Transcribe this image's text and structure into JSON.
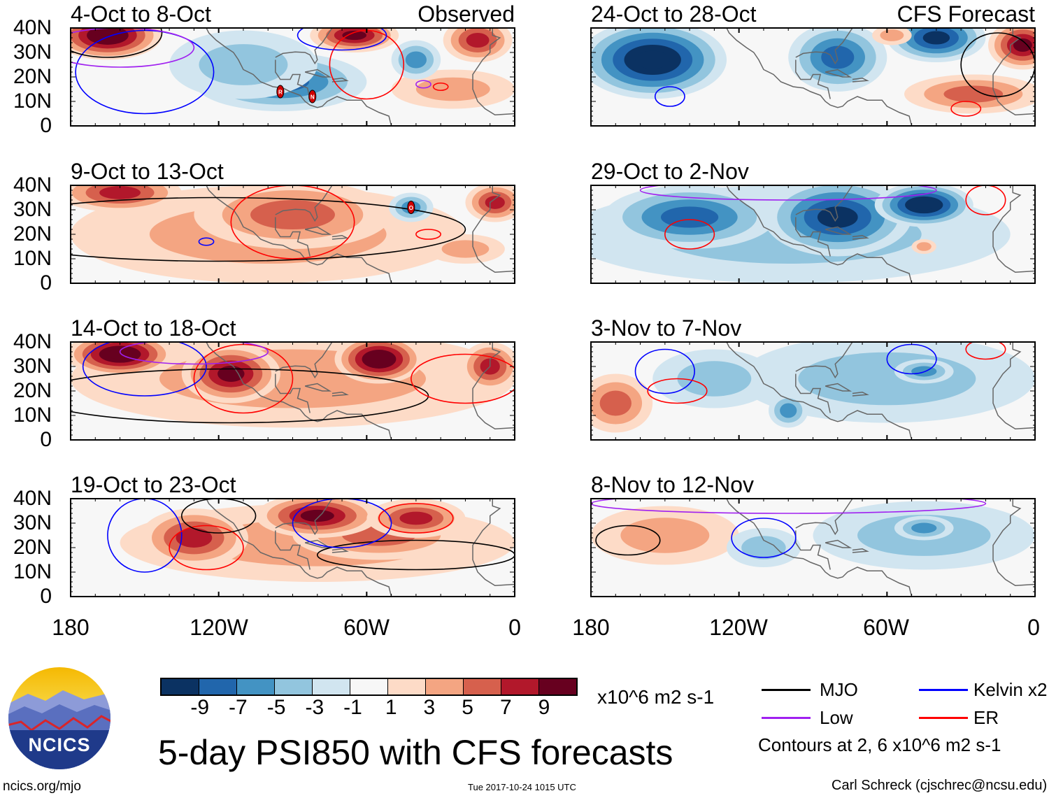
{
  "panels": [
    {
      "title": "4-Oct to 8-Oct",
      "tag": "Observed",
      "column": "left",
      "row": 0,
      "anomalies": [
        {
          "lon": 165,
          "lat": 37,
          "rx": 22,
          "ry": 10,
          "v": 10
        },
        {
          "lon": 65,
          "lat": 37,
          "rx": 18,
          "ry": 7,
          "v": 9
        },
        {
          "lon": 15,
          "lat": 35,
          "rx": 14,
          "ry": 9,
          "v": 6
        },
        {
          "lon": 25,
          "lat": 15,
          "rx": 25,
          "ry": 8,
          "v": 3
        },
        {
          "lon": 95,
          "lat": 18,
          "rx": 35,
          "ry": 12,
          "v": -6
        },
        {
          "lon": 40,
          "lat": 27,
          "rx": 10,
          "ry": 8,
          "v": -4
        },
        {
          "lon": 110,
          "lat": 25,
          "rx": 30,
          "ry": 14,
          "v": -2
        }
      ],
      "contours": [
        {
          "type": "Kelvin",
          "lon": 150,
          "lat": 22,
          "rx": 28,
          "ry": 17
        },
        {
          "type": "ER",
          "lon": 60,
          "lat": 25,
          "rx": 15,
          "ry": 14
        },
        {
          "type": "MJO",
          "lon": 165,
          "lat": 38,
          "rx": 22,
          "ry": 10
        },
        {
          "type": "Low",
          "lon": 160,
          "lat": 32,
          "rx": 30,
          "ry": 8
        },
        {
          "type": "Kelvin",
          "lon": 70,
          "lat": 37,
          "rx": 18,
          "ry": 6
        },
        {
          "type": "ER",
          "lon": 30,
          "lat": 16,
          "rx": 3,
          "ry": 1.5
        },
        {
          "type": "Low",
          "lon": 37,
          "lat": 17,
          "rx": 3,
          "ry": 1.5
        }
      ],
      "storms": [
        {
          "label": "R",
          "lon": 95,
          "lat": 14
        },
        {
          "label": "N",
          "lon": 82,
          "lat": 12
        }
      ]
    },
    {
      "title": "24-Oct to 28-Oct",
      "tag": "CFS Forecast",
      "column": "right",
      "row": 0,
      "anomalies": [
        {
          "lon": 155,
          "lat": 27,
          "rx": 30,
          "ry": 16,
          "v": -11
        },
        {
          "lon": 80,
          "lat": 28,
          "rx": 20,
          "ry": 14,
          "v": -6
        },
        {
          "lon": 40,
          "lat": 36,
          "rx": 20,
          "ry": 10,
          "v": -9
        },
        {
          "lon": 5,
          "lat": 33,
          "rx": 14,
          "ry": 10,
          "v": 8
        },
        {
          "lon": 25,
          "lat": 13,
          "rx": 28,
          "ry": 8,
          "v": 4
        },
        {
          "lon": 58,
          "lat": 37,
          "rx": 8,
          "ry": 4,
          "v": 3
        }
      ],
      "contours": [
        {
          "type": "Kelvin",
          "lon": 148,
          "lat": 12,
          "rx": 6,
          "ry": 4
        },
        {
          "type": "ER",
          "lon": 28,
          "lat": 7,
          "rx": 6,
          "ry": 3
        },
        {
          "type": "MJO",
          "lon": 15,
          "lat": 25,
          "rx": 15,
          "ry": 13
        }
      ],
      "storms": []
    },
    {
      "title": "9-Oct to 13-Oct",
      "tag": "",
      "column": "left",
      "row": 1,
      "anomalies": [
        {
          "lon": 160,
          "lat": 37,
          "rx": 25,
          "ry": 8,
          "v": 7
        },
        {
          "lon": 90,
          "lat": 28,
          "rx": 40,
          "ry": 14,
          "v": 4
        },
        {
          "lon": 100,
          "lat": 20,
          "rx": 80,
          "ry": 20,
          "v": 2
        },
        {
          "lon": 42,
          "lat": 31,
          "rx": 9,
          "ry": 6,
          "v": -5
        },
        {
          "lon": 8,
          "lat": 33,
          "rx": 12,
          "ry": 8,
          "v": 6
        },
        {
          "lon": 20,
          "lat": 14,
          "rx": 16,
          "ry": 6,
          "v": 2
        }
      ],
      "contours": [
        {
          "type": "MJO",
          "lon": 120,
          "lat": 22,
          "rx": 100,
          "ry": 13
        },
        {
          "type": "ER",
          "lon": 90,
          "lat": 25,
          "rx": 25,
          "ry": 15
        },
        {
          "type": "Kelvin",
          "lon": 125,
          "lat": 17,
          "rx": 3,
          "ry": 1.5
        },
        {
          "type": "ER",
          "lon": 35,
          "lat": 20,
          "rx": 5,
          "ry": 2
        }
      ],
      "storms": [
        {
          "label": "O",
          "lon": 42,
          "lat": 31
        }
      ]
    },
    {
      "title": "29-Oct to 2-Nov",
      "tag": "",
      "column": "right",
      "row": 1,
      "anomalies": [
        {
          "lon": 140,
          "lat": 27,
          "rx": 35,
          "ry": 13,
          "v": -6
        },
        {
          "lon": 80,
          "lat": 27,
          "rx": 30,
          "ry": 16,
          "v": -9
        },
        {
          "lon": 45,
          "lat": 32,
          "rx": 20,
          "ry": 9,
          "v": -11
        },
        {
          "lon": 100,
          "lat": 20,
          "rx": 90,
          "ry": 20,
          "v": -2
        },
        {
          "lon": 45,
          "lat": 15,
          "rx": 5,
          "ry": 3,
          "v": 2
        }
      ],
      "contours": [
        {
          "type": "ER",
          "lon": 140,
          "lat": 20,
          "rx": 10,
          "ry": 6
        },
        {
          "type": "ER",
          "lon": 20,
          "lat": 34,
          "rx": 8,
          "ry": 6
        },
        {
          "type": "Low",
          "lon": 100,
          "lat": 38,
          "rx": 60,
          "ry": 4
        }
      ],
      "storms": []
    },
    {
      "title": "14-Oct to 18-Oct",
      "tag": "",
      "column": "left",
      "row": 2,
      "anomalies": [
        {
          "lon": 160,
          "lat": 35,
          "rx": 22,
          "ry": 9,
          "v": 10
        },
        {
          "lon": 115,
          "lat": 27,
          "rx": 20,
          "ry": 12,
          "v": 8
        },
        {
          "lon": 55,
          "lat": 33,
          "rx": 18,
          "ry": 10,
          "v": 10
        },
        {
          "lon": 10,
          "lat": 30,
          "rx": 12,
          "ry": 10,
          "v": 6
        },
        {
          "lon": 90,
          "lat": 25,
          "rx": 90,
          "ry": 20,
          "v": 2
        }
      ],
      "contours": [
        {
          "type": "MJO",
          "lon": 115,
          "lat": 18,
          "rx": 80,
          "ry": 11
        },
        {
          "type": "ER",
          "lon": 110,
          "lat": 25,
          "rx": 20,
          "ry": 14
        },
        {
          "type": "ER",
          "lon": 20,
          "lat": 25,
          "rx": 22,
          "ry": 10
        },
        {
          "type": "Kelvin",
          "lon": 150,
          "lat": 30,
          "rx": 25,
          "ry": 12
        },
        {
          "type": "Low",
          "lon": 130,
          "lat": 36,
          "rx": 30,
          "ry": 5
        }
      ],
      "storms": []
    },
    {
      "title": "3-Nov to 7-Nov",
      "tag": "",
      "column": "right",
      "row": 2,
      "anomalies": [
        {
          "lon": 60,
          "lat": 25,
          "rx": 60,
          "ry": 18,
          "v": -2
        },
        {
          "lon": 45,
          "lat": 28,
          "rx": 12,
          "ry": 5,
          "v": -5
        },
        {
          "lon": 130,
          "lat": 25,
          "rx": 25,
          "ry": 12,
          "v": -2
        },
        {
          "lon": 100,
          "lat": 12,
          "rx": 8,
          "ry": 7,
          "v": -4
        },
        {
          "lon": 170,
          "lat": 15,
          "rx": 15,
          "ry": 12,
          "v": 4
        }
      ],
      "contours": [
        {
          "type": "Kelvin",
          "lon": 150,
          "lat": 28,
          "rx": 12,
          "ry": 9
        },
        {
          "type": "ER",
          "lon": 145,
          "lat": 20,
          "rx": 12,
          "ry": 5
        },
        {
          "type": "Kelvin",
          "lon": 50,
          "lat": 33,
          "rx": 10,
          "ry": 6
        },
        {
          "type": "ER",
          "lon": 20,
          "lat": 37,
          "rx": 8,
          "ry": 4
        }
      ],
      "storms": []
    },
    {
      "title": "19-Oct to 23-Oct",
      "tag": "",
      "column": "left",
      "row": 3,
      "anomalies": [
        {
          "lon": 130,
          "lat": 24,
          "rx": 22,
          "ry": 12,
          "v": 6
        },
        {
          "lon": 80,
          "lat": 33,
          "rx": 25,
          "ry": 9,
          "v": 9
        },
        {
          "lon": 40,
          "lat": 32,
          "rx": 20,
          "ry": 8,
          "v": 7
        },
        {
          "lon": 80,
          "lat": 22,
          "rx": 80,
          "ry": 16,
          "v": 2
        },
        {
          "lon": 55,
          "lat": 25,
          "rx": 35,
          "ry": 10,
          "v": 4
        }
      ],
      "contours": [
        {
          "type": "Kelvin",
          "lon": 150,
          "lat": 25,
          "rx": 15,
          "ry": 15
        },
        {
          "type": "ER",
          "lon": 125,
          "lat": 20,
          "rx": 15,
          "ry": 9
        },
        {
          "type": "MJO",
          "lon": 120,
          "lat": 33,
          "rx": 15,
          "ry": 7
        },
        {
          "type": "MJO",
          "lon": 40,
          "lat": 17,
          "rx": 40,
          "ry": 6
        },
        {
          "type": "ER",
          "lon": 40,
          "lat": 32,
          "rx": 15,
          "ry": 6
        },
        {
          "type": "Kelvin",
          "lon": 70,
          "lat": 30,
          "rx": 20,
          "ry": 10
        }
      ],
      "storms": []
    },
    {
      "title": "8-Nov to 12-Nov",
      "tag": "",
      "column": "right",
      "row": 3,
      "anomalies": [
        {
          "lon": 45,
          "lat": 25,
          "rx": 45,
          "ry": 14,
          "v": -3
        },
        {
          "lon": 45,
          "lat": 28,
          "rx": 12,
          "ry": 5,
          "v": -5
        },
        {
          "lon": 150,
          "lat": 25,
          "rx": 30,
          "ry": 12,
          "v": 2
        },
        {
          "lon": 110,
          "lat": 20,
          "rx": 15,
          "ry": 8,
          "v": -2
        }
      ],
      "contours": [
        {
          "type": "MJO",
          "lon": 165,
          "lat": 23,
          "rx": 13,
          "ry": 6
        },
        {
          "type": "Kelvin",
          "lon": 110,
          "lat": 24,
          "rx": 13,
          "ry": 8
        },
        {
          "type": "Low",
          "lon": 100,
          "lat": 38,
          "rx": 80,
          "ry": 4
        }
      ],
      "storms": []
    }
  ],
  "lat_labels": [
    "40N",
    "30N",
    "20N",
    "10N",
    "0"
  ],
  "lon_labels": [
    "180",
    "120W",
    "60W",
    "0"
  ],
  "colorbar": {
    "tick_labels": [
      "-9",
      "-7",
      "-5",
      "-3",
      "-1",
      "1",
      "3",
      "5",
      "7",
      "9"
    ],
    "colors": [
      "#0b3262",
      "#2166ac",
      "#4393c3",
      "#92c5de",
      "#d1e5f0",
      "#f7f7f7",
      "#fddbc7",
      "#f4a582",
      "#d6604d",
      "#b2182b",
      "#67001f"
    ],
    "units": "x10^6 m2 s-1"
  },
  "title": "5-day PSI850 with CFS forecasts",
  "timestamp": "Tue 2017-10-24 1015 UTC",
  "legend": {
    "items": [
      {
        "label": "MJO",
        "color": "#000000"
      },
      {
        "label": "Kelvin x2",
        "color": "#0000ff"
      },
      {
        "label": "Low",
        "color": "#a020f0"
      },
      {
        "label": "ER",
        "color": "#ff0000"
      }
    ],
    "note": "Contours at 2, 6 x10^6 m2 s-1"
  },
  "logo": {
    "text": "NCICS"
  },
  "url": "ncics.org/mjo",
  "credit": "Carl Schreck (cjschrec@ncsu.edu)"
}
